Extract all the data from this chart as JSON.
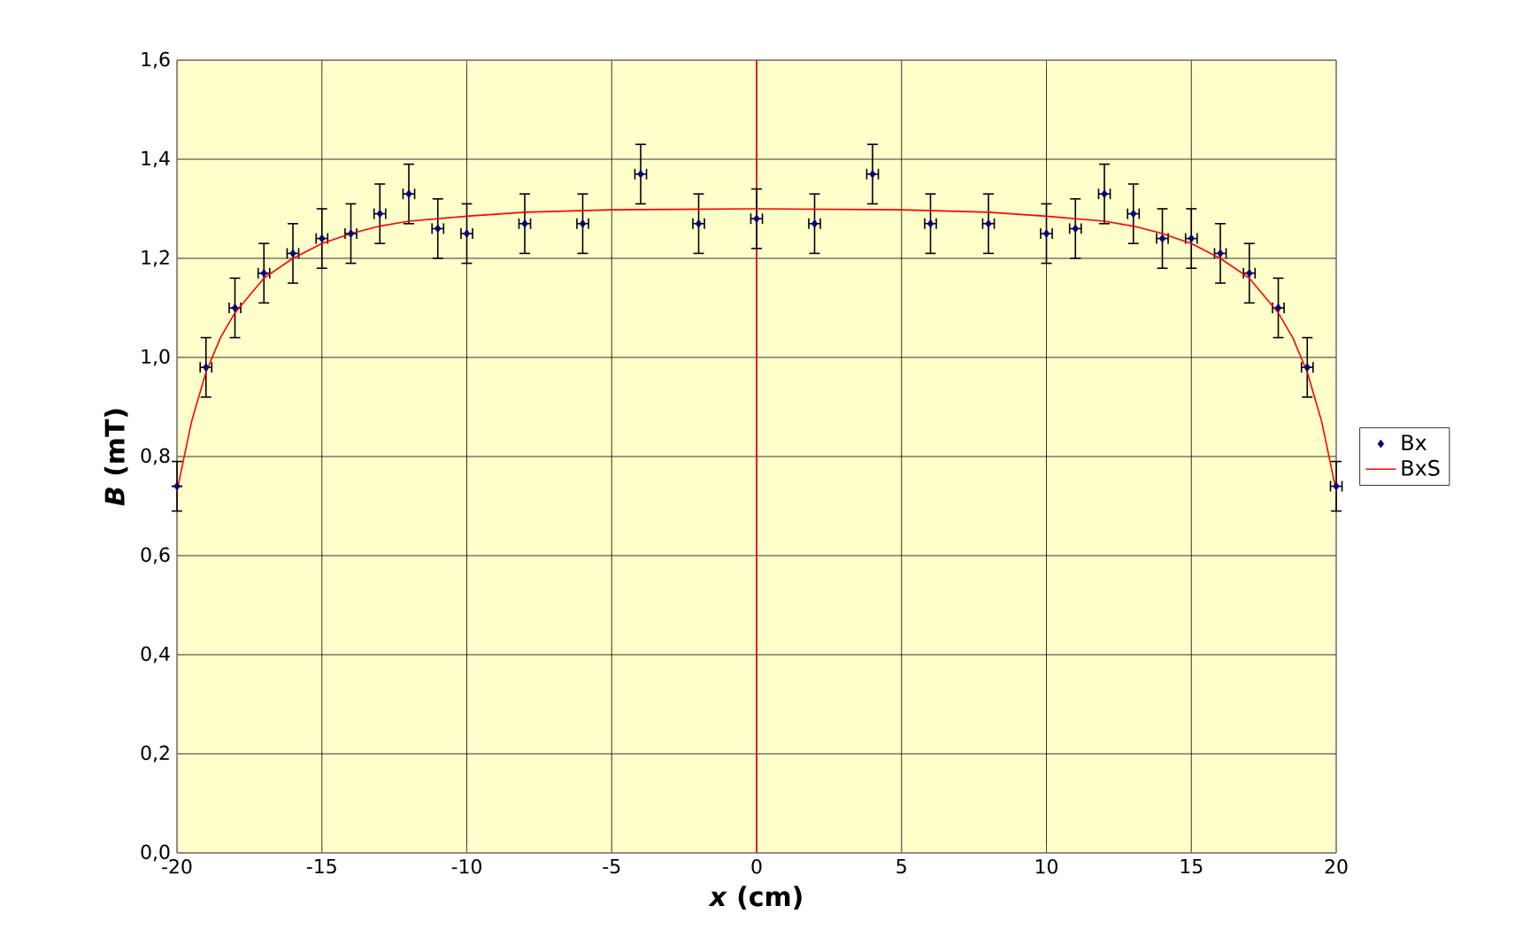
{
  "chart_data": {
    "type": "scatter",
    "xlabel": "*x*  (cm)",
    "ylabel": "*B*  (mT)",
    "xlim": [
      -20,
      20
    ],
    "ylim": [
      0,
      1.6
    ],
    "xticks": [
      -20,
      -15,
      -10,
      -5,
      0,
      5,
      10,
      15,
      20
    ],
    "yticks": [
      {
        "value": 0,
        "label": "0,0"
      },
      {
        "value": 0.2,
        "label": "0,2"
      },
      {
        "value": 0.4,
        "label": "0,4"
      },
      {
        "value": 0.6,
        "label": "0,6"
      },
      {
        "value": 0.8,
        "label": "0,8"
      },
      {
        "value": 1.0,
        "label": "1,0"
      },
      {
        "value": 1.2,
        "label": "1,2"
      },
      {
        "value": 1.4,
        "label": "1,4"
      },
      {
        "value": 1.6,
        "label": "1,6"
      }
    ],
    "grid": true,
    "legend": "right",
    "ref_lines": [
      {
        "axis": "x",
        "value": 0,
        "color": "#ff0000"
      }
    ],
    "series": [
      {
        "name": "Bx",
        "marker": "diamond",
        "color": "#000080",
        "x": [
          -20,
          -19,
          -18,
          -17,
          -16,
          -15,
          -14,
          -13,
          -12,
          -11,
          -10,
          -8,
          -6,
          -4,
          -2,
          0,
          2,
          4,
          6,
          8,
          10,
          11,
          12,
          13,
          14,
          15,
          16,
          17,
          18,
          19,
          20
        ],
        "values": [
          0.74,
          0.98,
          1.1,
          1.17,
          1.21,
          1.24,
          1.25,
          1.29,
          1.33,
          1.26,
          1.25,
          1.27,
          1.27,
          1.37,
          1.27,
          1.28,
          1.27,
          1.37,
          1.27,
          1.27,
          1.25,
          1.26,
          1.33,
          1.29,
          1.24,
          1.24,
          1.21,
          1.17,
          1.1,
          0.98,
          0.74
        ],
        "errors": [
          0.05,
          0.06,
          0.06,
          0.06,
          0.06,
          0.06,
          0.06,
          0.06,
          0.06,
          0.06,
          0.06,
          0.06,
          0.06,
          0.06,
          0.06,
          0.06,
          0.06,
          0.06,
          0.06,
          0.06,
          0.06,
          0.06,
          0.06,
          0.06,
          0.06,
          0.06,
          0.06,
          0.06,
          0.06,
          0.06,
          0.05
        ],
        "xerrors": [
          null,
          0.2,
          0.2,
          0.2,
          0.2,
          0.2,
          0.2,
          0.2,
          0.2,
          0.2,
          0.2,
          0.2,
          0.2,
          0.2,
          0.2,
          0.2,
          0.2,
          0.2,
          0.2,
          0.2,
          0.2,
          0.2,
          0.2,
          0.2,
          0.2,
          0.2,
          0.2,
          0.2,
          0.2,
          0.2,
          0.2
        ]
      },
      {
        "name": "BxS",
        "type": "line",
        "marker": "none",
        "line_style": "solid",
        "color": "#ff0000",
        "x": [
          -20,
          -19.5,
          -19,
          -18.5,
          -18,
          -17,
          -16,
          -15,
          -14,
          -13,
          -12,
          -10,
          -8,
          -5,
          0,
          5,
          8,
          10,
          12,
          13,
          14,
          15,
          16,
          17,
          18,
          18.5,
          19,
          19.5,
          20
        ],
        "values": [
          0.73,
          0.87,
          0.97,
          1.04,
          1.09,
          1.16,
          1.2,
          1.23,
          1.25,
          1.265,
          1.275,
          1.285,
          1.293,
          1.298,
          1.3,
          1.298,
          1.293,
          1.285,
          1.275,
          1.265,
          1.25,
          1.23,
          1.2,
          1.16,
          1.09,
          1.04,
          0.97,
          0.87,
          0.73
        ]
      }
    ]
  }
}
